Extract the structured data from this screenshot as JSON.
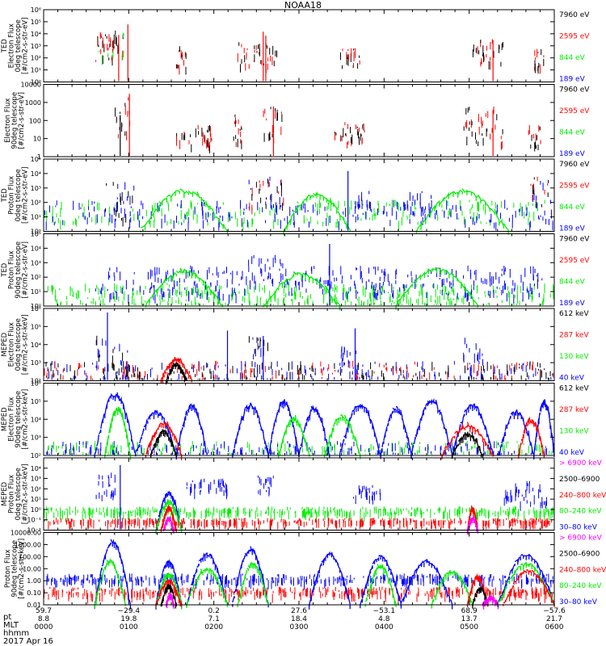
{
  "title": "NOAA18",
  "colors": {
    "black": "#000000",
    "red": "#ff0000",
    "green": "#00ee00",
    "blue": "#0000ff",
    "magenta": "#ff00ff"
  },
  "chart_data": [
    {
      "type": "scatter",
      "instrument": "TED",
      "ylabel": [
        "TED",
        "Electron Flux",
        "0deg telescope",
        "[#/cm2-s-str-eV]"
      ],
      "log": true,
      "ylim": [
        1,
        1000000
      ],
      "yticks": [
        {
          "v": 1,
          "t": "10⁰"
        },
        {
          "v": 10,
          "t": "10¹"
        },
        {
          "v": 100,
          "t": "10²"
        },
        {
          "v": 1000,
          "t": "10³"
        },
        {
          "v": 10000,
          "t": "10⁴"
        },
        {
          "v": 100000,
          "t": "10⁵"
        },
        {
          "v": 1000000,
          "t": "10⁶"
        }
      ],
      "legend": [
        {
          "label": "7960 eV",
          "color": "black"
        },
        {
          "label": "2595 eV",
          "color": "red"
        },
        {
          "label": "844 eV",
          "color": "green"
        },
        {
          "label": "189 eV",
          "color": "blue"
        }
      ],
      "bursts": [
        [
          0.1,
          0.16,
          3.0,
          1.2,
          "black,red,green"
        ],
        [
          0.11,
          0.15,
          3.5,
          0.8,
          "red,black"
        ],
        [
          0.26,
          0.28,
          2.2,
          1.0,
          "red,black"
        ],
        [
          0.38,
          0.46,
          2.4,
          1.0,
          "black,red"
        ],
        [
          0.58,
          0.62,
          2.1,
          0.8,
          "black,red"
        ],
        [
          0.84,
          0.9,
          2.6,
          1.0,
          "red,black"
        ],
        [
          0.96,
          0.98,
          2.0,
          0.8,
          "red,black"
        ]
      ],
      "spikes": [
        {
          "x": 0.165,
          "y": 60000,
          "c": "red"
        },
        {
          "x": 0.147,
          "y": 8000,
          "c": "red"
        },
        {
          "x": 0.43,
          "y": 15000,
          "c": "red"
        },
        {
          "x": 0.435,
          "y": 7000,
          "c": "red"
        },
        {
          "x": 0.88,
          "y": 3000,
          "c": "red"
        }
      ]
    },
    {
      "type": "scatter",
      "instrument": "",
      "ylabel": [
        "Electron Flux",
        "90deg telescope",
        "[#/cm2-s-str-eV]"
      ],
      "log": true,
      "ylim": [
        1,
        10000
      ],
      "yticks": [
        {
          "v": 1,
          "t": "1"
        },
        {
          "v": 10,
          "t": "10"
        },
        {
          "v": 100,
          "t": "100"
        },
        {
          "v": 1000,
          "t": "1000"
        },
        {
          "v": 10000,
          "t": "10000"
        }
      ],
      "legend": [
        {
          "label": "7960 eV",
          "color": "black"
        },
        {
          "label": "2595 eV",
          "color": "red"
        },
        {
          "label": "844 eV",
          "color": "green"
        },
        {
          "label": "189 eV",
          "color": "blue"
        }
      ],
      "bursts": [
        [
          0.14,
          0.17,
          2.2,
          1.2,
          "black,red"
        ],
        [
          0.26,
          0.33,
          1.2,
          0.6,
          "black,red"
        ],
        [
          0.37,
          0.4,
          1.6,
          0.8,
          "red,black"
        ],
        [
          0.43,
          0.47,
          2.0,
          1.0,
          "red,black"
        ],
        [
          0.57,
          0.63,
          1.4,
          0.6,
          "red,black"
        ],
        [
          0.82,
          0.9,
          1.8,
          1.0,
          "red,black"
        ],
        [
          0.95,
          0.98,
          1.2,
          0.6,
          "red,black"
        ]
      ],
      "spikes": [
        {
          "x": 0.168,
          "y": 3000,
          "c": "red"
        },
        {
          "x": 0.45,
          "y": 600,
          "c": "red"
        },
        {
          "x": 0.15,
          "y": 200,
          "c": "black"
        },
        {
          "x": 0.88,
          "y": 400,
          "c": "red"
        }
      ]
    },
    {
      "type": "scatter",
      "instrument": "TED",
      "ylabel": [
        "TED",
        "Proton Flux",
        "0deg telescope",
        "[#/cm2-s-str-eV]"
      ],
      "log": true,
      "ylim": [
        1,
        100000
      ],
      "yticks": [
        {
          "v": 1,
          "t": "10⁰"
        },
        {
          "v": 10,
          "t": "10¹"
        },
        {
          "v": 100,
          "t": "10²"
        },
        {
          "v": 1000,
          "t": "10³"
        },
        {
          "v": 10000,
          "t": "10⁴"
        },
        {
          "v": 100000,
          "t": "10⁵"
        }
      ],
      "legend": [
        {
          "label": "7960 eV",
          "color": "black"
        },
        {
          "label": "2595 eV",
          "color": "red"
        },
        {
          "label": "844 eV",
          "color": "green"
        },
        {
          "label": "189 eV",
          "color": "blue"
        }
      ],
      "bursts": [
        [
          0.0,
          1.0,
          1.4,
          0.8,
          "green,blue"
        ],
        [
          0.12,
          0.18,
          2.2,
          1.4,
          "blue,black"
        ],
        [
          0.4,
          0.47,
          2.8,
          1.0,
          "blue,red,black"
        ],
        [
          0.61,
          0.64,
          2.2,
          0.8,
          "blue"
        ],
        [
          0.7,
          0.76,
          2.0,
          0.8,
          "blue"
        ],
        [
          0.95,
          0.99,
          2.8,
          1.0,
          "blue,red,black"
        ]
      ],
      "arcs": [
        [
          0.19,
          0.36,
          2.8,
          "green"
        ],
        [
          0.47,
          0.6,
          2.6,
          "green"
        ],
        [
          0.73,
          0.91,
          2.8,
          "green"
        ]
      ],
      "spikes": [
        {
          "x": 0.596,
          "y": 15000,
          "c": "blue"
        }
      ]
    },
    {
      "type": "scatter",
      "instrument": "TED",
      "ylabel": [
        "TED",
        "Proton Flux",
        "90deg telescope",
        "[#/cm2-s-str-eV]"
      ],
      "log": true,
      "ylim": [
        1,
        100000
      ],
      "yticks": [
        {
          "v": 1,
          "t": "10⁰"
        },
        {
          "v": 10,
          "t": "10¹"
        },
        {
          "v": 100,
          "t": "10²"
        },
        {
          "v": 1000,
          "t": "10³"
        },
        {
          "v": 10000,
          "t": "10⁴"
        },
        {
          "v": 100000,
          "t": "10⁵"
        }
      ],
      "legend": [
        {
          "label": "7960 eV",
          "color": "black"
        },
        {
          "label": "2595 eV",
          "color": "red"
        },
        {
          "label": "844 eV",
          "color": "green"
        },
        {
          "label": "189 eV",
          "color": "blue"
        }
      ],
      "bursts": [
        [
          0.0,
          1.0,
          0.8,
          0.8,
          "green"
        ],
        [
          0.1,
          0.4,
          1.8,
          1.0,
          "blue"
        ],
        [
          0.4,
          0.47,
          2.6,
          1.0,
          "blue"
        ],
        [
          0.47,
          0.98,
          1.8,
          1.0,
          "blue"
        ]
      ],
      "arcs": [
        [
          0.2,
          0.35,
          2.4,
          "green"
        ],
        [
          0.43,
          0.58,
          2.2,
          "green"
        ],
        [
          0.69,
          0.85,
          2.6,
          "green"
        ]
      ],
      "spikes": [
        {
          "x": 0.56,
          "y": 20000,
          "c": "blue"
        }
      ]
    },
    {
      "type": "scatter",
      "instrument": "MEPED",
      "ylabel": [
        "MEPED",
        "Electron Flux",
        "0deg telescope",
        "[#/cm2-s-str-keV]"
      ],
      "log": true,
      "ylim": [
        100,
        1000000
      ],
      "yticks": [
        {
          "v": 100,
          "t": "10²"
        },
        {
          "v": 1000,
          "t": "10³"
        },
        {
          "v": 10000,
          "t": "10⁴"
        },
        {
          "v": 100000,
          "t": "10⁵"
        },
        {
          "v": 1000000,
          "t": "10⁶"
        }
      ],
      "legend": [
        {
          "label": "612 keV",
          "color": "black"
        },
        {
          "label": "287 keV",
          "color": "red"
        },
        {
          "label": "130 keV",
          "color": "green"
        },
        {
          "label": "40 keV",
          "color": "blue"
        }
      ],
      "bursts": [
        [
          0.0,
          1.0,
          2.6,
          0.5,
          "blue,red,black"
        ],
        [
          0.1,
          0.17,
          3.4,
          1.2,
          "blue,black"
        ],
        [
          0.4,
          0.44,
          3.6,
          1.0,
          "blue,black"
        ],
        [
          0.58,
          0.62,
          3.2,
          0.8,
          "blue"
        ],
        [
          0.82,
          0.86,
          3.2,
          1.2,
          "blue"
        ]
      ],
      "arcs": [
        [
          0.23,
          0.29,
          3.2,
          "red"
        ],
        [
          0.24,
          0.28,
          2.9,
          "black"
        ]
      ],
      "spikes": [
        {
          "x": 0.125,
          "y": 600000,
          "c": "blue"
        },
        {
          "x": 0.61,
          "y": 80000,
          "c": "blue"
        },
        {
          "x": 0.36,
          "y": 60000,
          "c": "blue"
        },
        {
          "x": 0.43,
          "y": 30000,
          "c": "blue"
        }
      ]
    },
    {
      "type": "scatter",
      "instrument": "MEPED",
      "ylabel": [
        "MEPED",
        "Electron Flux",
        "90deg telescope",
        "[#/cm2-s-str-keV]"
      ],
      "log": true,
      "ylim": [
        100,
        1000000
      ],
      "yticks": [
        {
          "v": 100,
          "t": "10²"
        },
        {
          "v": 1000,
          "t": "10³"
        },
        {
          "v": 10000,
          "t": "10⁴"
        },
        {
          "v": 100000,
          "t": "10⁵"
        },
        {
          "v": 1000000,
          "t": "10⁶"
        }
      ],
      "legend": [
        {
          "label": "612 keV",
          "color": "black"
        },
        {
          "label": "287 keV",
          "color": "red"
        },
        {
          "label": "130 keV",
          "color": "green"
        },
        {
          "label": "40 keV",
          "color": "blue"
        }
      ],
      "bursts": [
        [
          0.0,
          1.0,
          2.4,
          0.4,
          "green,blue"
        ]
      ],
      "arcs": [
        [
          0.1,
          0.18,
          5.4,
          "blue"
        ],
        [
          0.18,
          0.26,
          4.4,
          "blue"
        ],
        [
          0.26,
          0.32,
          4.8,
          "blue"
        ],
        [
          0.37,
          0.44,
          4.8,
          "blue"
        ],
        [
          0.44,
          0.5,
          5.0,
          "blue"
        ],
        [
          0.5,
          0.56,
          4.6,
          "blue"
        ],
        [
          0.58,
          0.66,
          4.8,
          "blue"
        ],
        [
          0.66,
          0.72,
          4.6,
          "blue"
        ],
        [
          0.72,
          0.8,
          5.0,
          "blue"
        ],
        [
          0.8,
          0.88,
          4.8,
          "blue"
        ],
        [
          0.89,
          0.96,
          4.4,
          "blue"
        ],
        [
          0.96,
          1.0,
          5.0,
          "blue"
        ],
        [
          0.12,
          0.17,
          4.6,
          "green"
        ],
        [
          0.2,
          0.27,
          3.8,
          "red"
        ],
        [
          0.21,
          0.26,
          3.3,
          "black"
        ],
        [
          0.46,
          0.52,
          4.0,
          "green"
        ],
        [
          0.55,
          0.62,
          4.2,
          "green"
        ],
        [
          0.78,
          0.88,
          3.6,
          "red"
        ],
        [
          0.8,
          0.86,
          3.2,
          "black"
        ],
        [
          0.93,
          0.98,
          4.0,
          "red"
        ]
      ]
    },
    {
      "type": "scatter",
      "instrument": "MEPED",
      "ylabel": [
        "MEPED",
        "Proton Flux",
        "0deg telescope",
        "[#/cm2-s-str-keV]"
      ],
      "log": true,
      "ylim": [
        0.01,
        100000
      ],
      "yticks": [
        {
          "v": 0.01,
          "t": "10⁻²"
        },
        {
          "v": 0.1,
          "t": "10⁻¹"
        },
        {
          "v": 1,
          "t": "10⁰"
        },
        {
          "v": 10,
          "t": "10¹"
        },
        {
          "v": 100,
          "t": "10²"
        },
        {
          "v": 1000,
          "t": "10³"
        },
        {
          "v": 10000,
          "t": "10⁴"
        }
      ],
      "legend": [
        {
          "label": "> 6900 keV",
          "color": "magenta"
        },
        {
          "label": "2500–6900",
          "color": "black"
        },
        {
          "label": "240–800 keV",
          "color": "red"
        },
        {
          "label": "80–240 keV",
          "color": "green"
        },
        {
          "label": "30–80 keV",
          "color": "blue"
        }
      ],
      "bursts": [
        [
          0.0,
          1.0,
          0.0,
          0.3,
          "green"
        ],
        [
          0.0,
          1.0,
          -1.0,
          0.2,
          "red"
        ],
        [
          0.1,
          0.14,
          2.5,
          1.2,
          "blue"
        ],
        [
          0.28,
          0.36,
          2.4,
          0.6,
          "blue"
        ],
        [
          0.42,
          0.45,
          2.6,
          0.8,
          "blue"
        ],
        [
          0.6,
          0.66,
          1.8,
          0.6,
          "blue"
        ],
        [
          0.9,
          0.99,
          1.8,
          1.2,
          "blue"
        ]
      ],
      "arcs": [
        [
          0.22,
          0.27,
          1.6,
          "blue"
        ],
        [
          0.22,
          0.27,
          0.8,
          "green"
        ],
        [
          0.23,
          0.26,
          0.2,
          "red"
        ],
        [
          0.235,
          0.255,
          -0.8,
          "magenta"
        ],
        [
          0.83,
          0.85,
          0.2,
          "red"
        ],
        [
          0.83,
          0.85,
          -0.8,
          "magenta"
        ]
      ],
      "spikes": [
        {
          "x": 0.15,
          "y": 20000,
          "c": "blue"
        }
      ]
    },
    {
      "type": "scatter",
      "instrument": "",
      "ylabel": [
        "Proton Flux",
        "90deg telescope",
        "[#/cm2-s-str-keV]"
      ],
      "log": true,
      "ylim": [
        0.01,
        10000
      ],
      "yticks": [
        {
          "v": 0.01,
          "t": "0.01"
        },
        {
          "v": 0.1,
          "t": "0.10"
        },
        {
          "v": 1,
          "t": "1.00"
        },
        {
          "v": 10,
          "t": "10.00"
        },
        {
          "v": 100,
          "t": "100.00"
        },
        {
          "v": 1000,
          "t": "1000.00"
        },
        {
          "v": 10000,
          "t": "10000.00"
        }
      ],
      "legend": [
        {
          "label": "> 6900 keV",
          "color": "magenta"
        },
        {
          "label": "2500–6900",
          "color": "black"
        },
        {
          "label": "240–800 keV",
          "color": "red"
        },
        {
          "label": "80–240 keV",
          "color": "green"
        },
        {
          "label": "30–80 keV",
          "color": "blue"
        }
      ],
      "bursts": [
        [
          0.0,
          1.0,
          -0.8,
          0.3,
          "red"
        ],
        [
          0.0,
          1.0,
          0.3,
          0.3,
          "blue"
        ]
      ],
      "arcs": [
        [
          0.1,
          0.17,
          3.2,
          "blue"
        ],
        [
          0.1,
          0.16,
          1.6,
          "green"
        ],
        [
          0.22,
          0.27,
          1.6,
          "blue"
        ],
        [
          0.22,
          0.27,
          0.6,
          "green"
        ],
        [
          0.22,
          0.27,
          0.0,
          "red"
        ],
        [
          0.23,
          0.26,
          -0.4,
          "black"
        ],
        [
          0.24,
          0.255,
          -1.2,
          "magenta"
        ],
        [
          0.28,
          0.36,
          2.2,
          "blue"
        ],
        [
          0.28,
          0.36,
          1.0,
          "green"
        ],
        [
          0.37,
          0.44,
          2.6,
          "blue"
        ],
        [
          0.38,
          0.44,
          1.4,
          "green"
        ],
        [
          0.52,
          0.6,
          2.2,
          "blue"
        ],
        [
          0.62,
          0.7,
          2.0,
          "blue"
        ],
        [
          0.63,
          0.69,
          1.2,
          "green"
        ],
        [
          0.7,
          0.8,
          1.6,
          "blue"
        ],
        [
          0.76,
          0.84,
          0.8,
          "green"
        ],
        [
          0.83,
          0.87,
          0.4,
          "red"
        ],
        [
          0.84,
          0.87,
          -0.6,
          "black"
        ],
        [
          0.86,
          0.89,
          -1.4,
          "magenta"
        ],
        [
          0.89,
          1.0,
          2.2,
          "blue"
        ],
        [
          0.89,
          1.0,
          1.4,
          "green"
        ],
        [
          0.9,
          1.0,
          0.8,
          "red"
        ]
      ]
    }
  ],
  "axis": {
    "rows": [
      "pt",
      "MLT",
      "hhmm"
    ],
    "ticks": [
      {
        "pt": "59.7",
        "mlt": "8.8",
        "hhmm": "0000"
      },
      {
        "pt": "−29.4",
        "mlt": "19.8",
        "hhmm": "0100"
      },
      {
        "pt": "0.2",
        "mlt": "7.1",
        "hhmm": "0200"
      },
      {
        "pt": "27.6",
        "mlt": "18.4",
        "hhmm": "0300"
      },
      {
        "pt": "−53.1",
        "mlt": "4.8",
        "hhmm": "0400"
      },
      {
        "pt": "68.9",
        "mlt": "13.7",
        "hhmm": "0500"
      },
      {
        "pt": "−57.6",
        "mlt": "21.7",
        "hhmm": "0600"
      }
    ],
    "date": "2017 Apr 16"
  }
}
